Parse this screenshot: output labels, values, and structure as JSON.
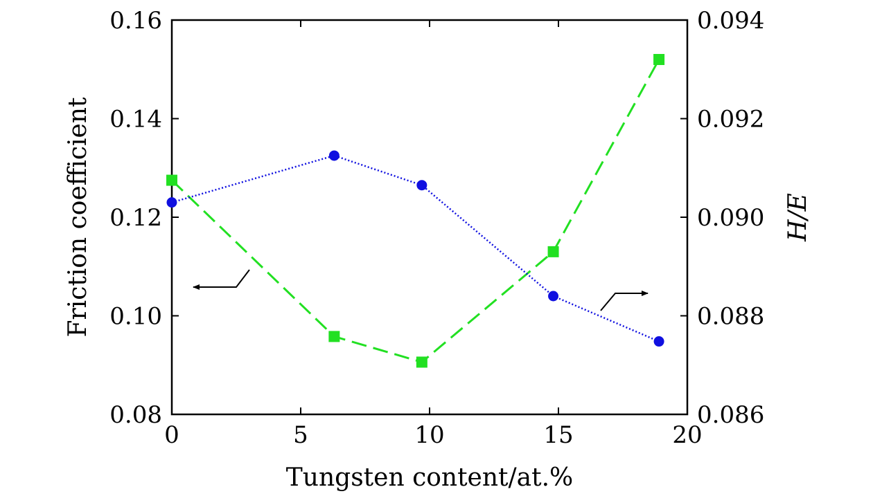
{
  "chart_data": {
    "type": "line",
    "xlabel": "Tungsten content/at.%",
    "ylabel_left": "Friction coefficient",
    "ylabel_right": "H/E",
    "xlim": [
      0,
      20
    ],
    "ylim_left": [
      0.08,
      0.16
    ],
    "ylim_right": [
      0.086,
      0.094
    ],
    "x_ticks": [
      "0",
      "5",
      "10",
      "15",
      "20"
    ],
    "y_left_ticks": [
      "0.08",
      "0.10",
      "0.12",
      "0.14",
      "0.16"
    ],
    "y_right_ticks": [
      "0.086",
      "0.088",
      "0.090",
      "0.092",
      "0.094"
    ],
    "grid": false,
    "series": [
      {
        "axis": "left",
        "color": "#22e022",
        "marker": "square",
        "line_style": "dashed",
        "x": [
          0,
          6.3,
          9.7,
          14.8,
          18.9
        ],
        "y": [
          0.1275,
          0.0958,
          0.0906,
          0.113,
          0.152
        ]
      },
      {
        "axis": "right",
        "color": "#1010e0",
        "marker": "circle",
        "line_style": "dotted",
        "x": [
          0,
          6.3,
          9.7,
          14.8,
          18.9
        ],
        "y": [
          0.0903,
          0.09125,
          0.09065,
          0.0884,
          0.08748
        ]
      }
    ],
    "annotations": [
      {
        "type": "arrow",
        "direction": "left",
        "points_to_axis": "left"
      },
      {
        "type": "arrow",
        "direction": "right",
        "points_to_axis": "right"
      }
    ]
  }
}
